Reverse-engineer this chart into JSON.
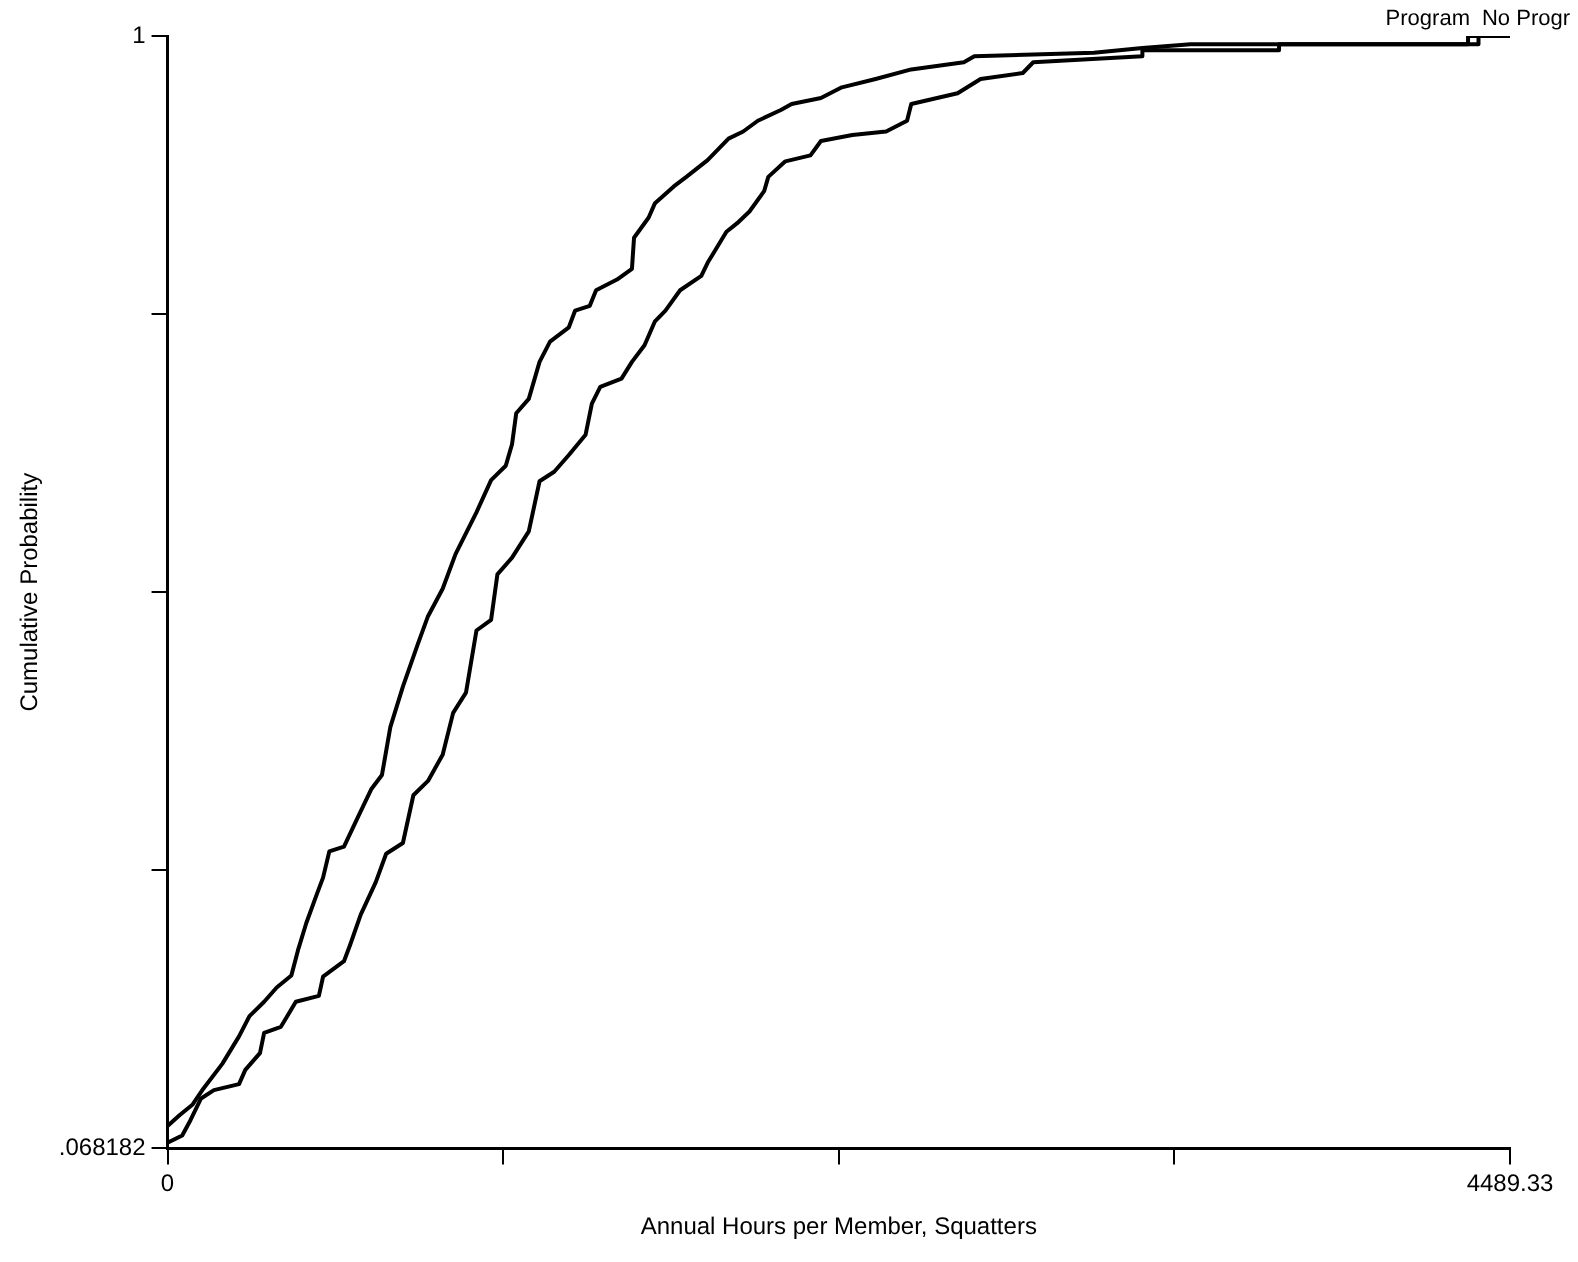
{
  "chart_data": {
    "type": "line",
    "xlabel": "Annual Hours per Member, Squatters",
    "ylabel": "Cumulative Probability",
    "xlim": [
      0,
      4489.33
    ],
    "xticks": [
      0,
      {
        "value": 1122.33,
        "label": null
      },
      {
        "value": 2244.67,
        "label": null
      },
      {
        "value": 3367,
        "label": null
      },
      4489.33
    ],
    "ylim": [
      0.068182,
      1
    ],
    "yticks": [
      {
        "value": 0.068182,
        "label": ".068182"
      },
      {
        "value": 0.301136,
        "label": null
      },
      {
        "value": 0.534091,
        "label": null
      },
      {
        "value": 0.767045,
        "label": null
      },
      1
    ],
    "legend": false,
    "marker": "none",
    "line_style": "solid",
    "series": [
      {
        "name": "Program",
        "color": "#000000",
        "x": [
          0,
          40,
          84,
          119,
          183,
          239,
          274,
          323,
          365,
          414,
          436,
          464,
          499,
          520,
          541,
          590,
          639,
          681,
          717,
          745,
          787,
          836,
          871,
          920,
          963,
          1033,
          1082,
          1131,
          1152,
          1166,
          1208,
          1244,
          1279,
          1342,
          1363,
          1412,
          1433,
          1503,
          1553,
          1560,
          1609,
          1630,
          1693,
          1735,
          1806,
          1876,
          1925,
          1974,
          2051,
          2087,
          2185,
          2255,
          2368,
          2487,
          2663,
          2698,
          3098,
          3260,
          3421,
          4349,
          4349,
          4489.33
        ],
        "values": [
          0.087,
          0.096,
          0.105,
          0.118,
          0.139,
          0.162,
          0.179,
          0.191,
          0.203,
          0.213,
          0.234,
          0.257,
          0.281,
          0.295,
          0.317,
          0.321,
          0.347,
          0.369,
          0.381,
          0.421,
          0.455,
          0.49,
          0.514,
          0.537,
          0.566,
          0.601,
          0.628,
          0.64,
          0.658,
          0.684,
          0.696,
          0.727,
          0.744,
          0.756,
          0.77,
          0.774,
          0.787,
          0.796,
          0.805,
          0.831,
          0.848,
          0.86,
          0.874,
          0.882,
          0.896,
          0.914,
          0.92,
          0.929,
          0.938,
          0.943,
          0.948,
          0.957,
          0.964,
          0.972,
          0.978,
          0.983,
          0.986,
          0.99,
          0.993,
          0.993,
          1,
          1
        ]
      },
      {
        "name": "No Progr",
        "color": "#000000",
        "x": [
          0,
          49,
          77,
          112,
          155,
          239,
          260,
          309,
          323,
          379,
          429,
          506,
          520,
          590,
          611,
          646,
          696,
          731,
          787,
          822,
          871,
          920,
          955,
          998,
          1033,
          1082,
          1103,
          1152,
          1208,
          1244,
          1293,
          1342,
          1398,
          1419,
          1447,
          1518,
          1553,
          1595,
          1630,
          1665,
          1714,
          1785,
          1806,
          1869,
          1904,
          1946,
          1995,
          2009,
          2066,
          2150,
          2185,
          2290,
          2403,
          2473,
          2487,
          2642,
          2719,
          2860,
          2895,
          3260,
          3260,
          3717,
          3717,
          4384,
          4384,
          4489.33
        ],
        "values": [
          0.073,
          0.079,
          0.092,
          0.11,
          0.117,
          0.122,
          0.134,
          0.148,
          0.165,
          0.17,
          0.191,
          0.196,
          0.212,
          0.225,
          0.239,
          0.264,
          0.291,
          0.315,
          0.324,
          0.364,
          0.376,
          0.398,
          0.433,
          0.45,
          0.502,
          0.511,
          0.549,
          0.563,
          0.585,
          0.627,
          0.635,
          0.649,
          0.666,
          0.692,
          0.706,
          0.713,
          0.727,
          0.741,
          0.761,
          0.77,
          0.787,
          0.799,
          0.81,
          0.836,
          0.843,
          0.853,
          0.87,
          0.882,
          0.895,
          0.9,
          0.912,
          0.917,
          0.92,
          0.929,
          0.943,
          0.952,
          0.964,
          0.969,
          0.978,
          0.983,
          0.988,
          0.988,
          0.993,
          0.993,
          1,
          1
        ]
      }
    ]
  }
}
